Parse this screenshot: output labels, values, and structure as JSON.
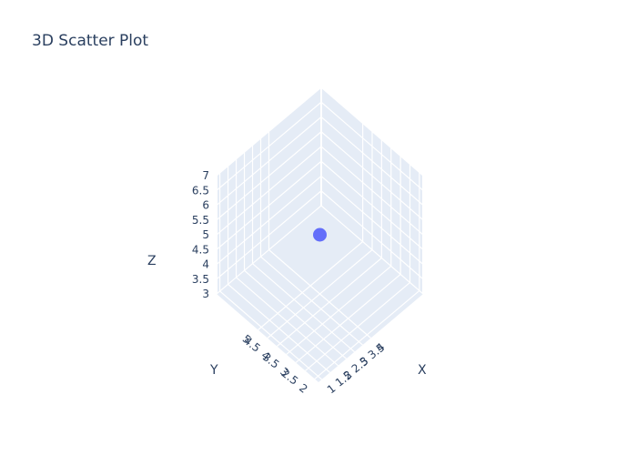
{
  "chart_data": {
    "type": "scatter3d",
    "title": "3D Scatter Plot",
    "x_axis": {
      "title": "X",
      "range": [
        0.8,
        7.2
      ],
      "ticks": [
        "1",
        "1.5",
        "2",
        "2.5",
        "3",
        "3.5",
        "4"
      ],
      "tick_values": [
        1,
        1.5,
        2,
        2.5,
        3,
        3.5,
        4
      ]
    },
    "y_axis": {
      "title": "Y",
      "range": [
        1.8,
        7.2
      ],
      "ticks": [
        "2",
        "2.5",
        "3",
        "3.5",
        "4",
        "4.5",
        "5"
      ],
      "tick_values": [
        2,
        2.5,
        3,
        3.5,
        4,
        4.5,
        5
      ]
    },
    "z_axis": {
      "title": "Z",
      "range": [
        3,
        7
      ],
      "ticks": [
        "3",
        "3.5",
        "4",
        "4.5",
        "5",
        "5.5",
        "6",
        "6.5",
        "7"
      ],
      "tick_values": [
        3,
        3.5,
        4,
        4.5,
        5,
        5.5,
        6,
        6.5,
        7
      ]
    },
    "points": [
      {
        "x": 4,
        "y": 4.5,
        "z": 5
      }
    ],
    "marker_color": "#636efa",
    "pane_color": "#e5ecf6",
    "grid_color": "#ffffff",
    "text_color": "#2a3f5f"
  }
}
